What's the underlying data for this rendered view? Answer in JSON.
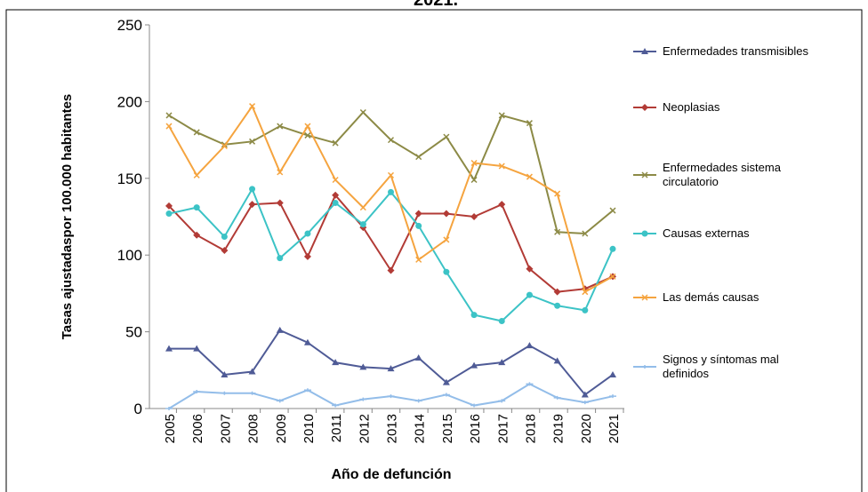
{
  "chart_data": {
    "type": "line",
    "title": "2021.",
    "x_label": "Año de defunción",
    "y_label": "Tasas ajustadaspor 100.000 habitantes",
    "categories": [
      "2005",
      "2006",
      "2007",
      "2008",
      "2009",
      "2010",
      "2011",
      "2012",
      "2013",
      "2014",
      "2015",
      "2016",
      "2017",
      "2018",
      "2019",
      "2020",
      "2021"
    ],
    "ylim": [
      0,
      250
    ],
    "yticks": [
      0,
      50,
      100,
      150,
      200,
      250
    ],
    "legend": "right",
    "series": [
      {
        "name": "Enfermedades transmisibles",
        "color": "#4f5b96",
        "marker": "triangle",
        "values": [
          39,
          39,
          22,
          24,
          51,
          43,
          30,
          27,
          26,
          33,
          17,
          28,
          30,
          41,
          31,
          9,
          22
        ]
      },
      {
        "name": "Neoplasias",
        "color": "#b23b36",
        "marker": "diamond",
        "values": [
          132,
          113,
          103,
          133,
          134,
          99,
          139,
          118,
          90,
          127,
          127,
          125,
          133,
          91,
          76,
          78,
          86
        ]
      },
      {
        "name": "Enfermedades sistema circulatorio",
        "color": "#8c8a46",
        "marker": "x",
        "values": [
          191,
          180,
          172,
          174,
          184,
          178,
          173,
          193,
          175,
          164,
          177,
          149,
          191,
          186,
          115,
          114,
          129
        ]
      },
      {
        "name": "Causas externas",
        "color": "#3cc3c6",
        "marker": "circle",
        "values": [
          127,
          131,
          112,
          143,
          98,
          114,
          134,
          120,
          141,
          119,
          89,
          61,
          57,
          74,
          67,
          64,
          104
        ]
      },
      {
        "name": "Las demás causas",
        "color": "#f5a43f",
        "marker": "x",
        "values": [
          184,
          152,
          171,
          197,
          154,
          184,
          149,
          131,
          152,
          97,
          110,
          160,
          158,
          151,
          140,
          76,
          86
        ]
      },
      {
        "name": "Signos y síntomas mal definidos",
        "color": "#93bde9",
        "marker": "plus",
        "values": [
          0,
          11,
          10,
          10,
          5,
          12,
          2,
          6,
          8,
          5,
          9,
          2,
          5,
          16,
          7,
          4,
          8
        ]
      }
    ]
  }
}
